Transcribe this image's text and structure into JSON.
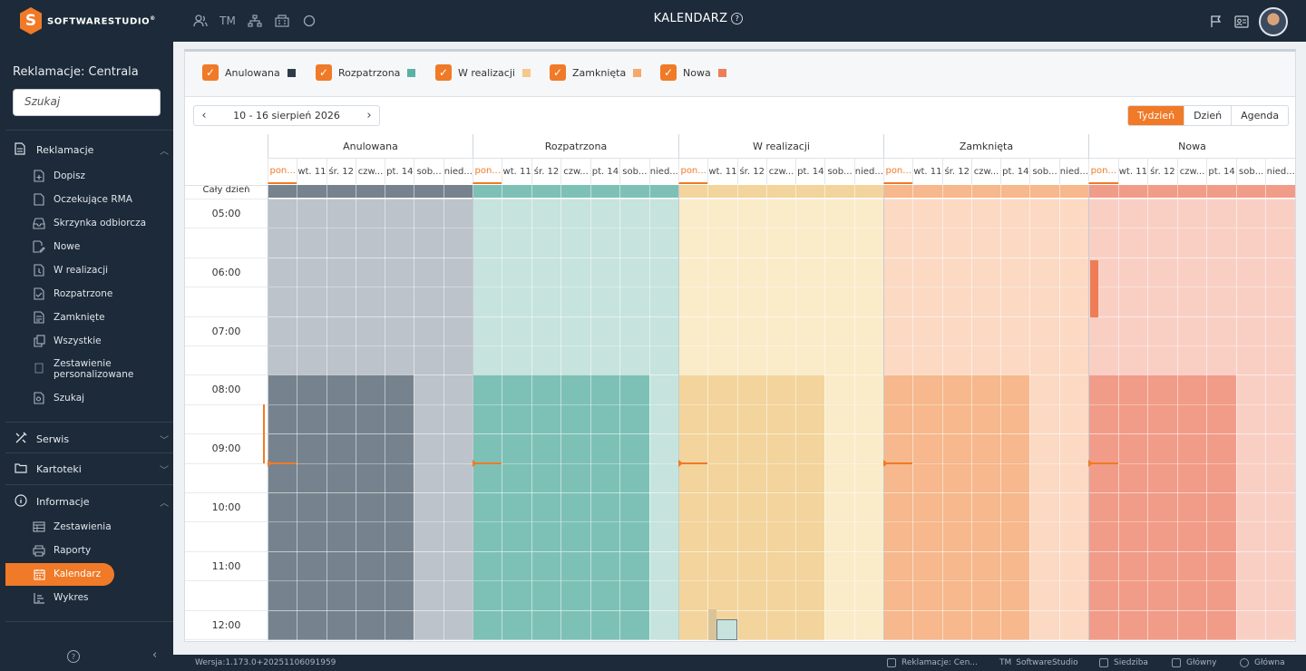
{
  "app": {
    "brand": "SOFTWARESTUDIO",
    "brand_mark": "S",
    "title": "KALENDARZ"
  },
  "top_icons": [
    "users-icon",
    "tm-icon",
    "org-chart-icon",
    "building-icon",
    "circle-icon"
  ],
  "top_icons_tm_label": "TM",
  "sidebar": {
    "context_title": "Reklamacje: Centrala",
    "search_placeholder": "Szukaj",
    "sections": [
      {
        "label": "Reklamacje",
        "expanded": true
      },
      {
        "label": "Serwis",
        "expanded": false
      },
      {
        "label": "Kartoteki",
        "expanded": false
      },
      {
        "label": "Informacje",
        "expanded": true
      }
    ],
    "reklamacje_items": [
      "Dopisz",
      "Oczekujące RMA",
      "Skrzynka odbiorcza",
      "Nowe",
      "W realizacji",
      "Rozpatrzone",
      "Zamknięte",
      "Wszystkie",
      "Zestawienie personalizowane",
      "Szukaj"
    ],
    "informacje_items": [
      "Zestawienia",
      "Raporty",
      "Kalendarz",
      "Wykres"
    ],
    "active_item": "Kalendarz"
  },
  "filters": [
    {
      "label": "Anulowana",
      "checked": true,
      "color": "#2e3b4a"
    },
    {
      "label": "Rozpatrzona",
      "checked": true,
      "color": "#5bb1a4"
    },
    {
      "label": "W realizacji",
      "checked": true,
      "color": "#f5c98a"
    },
    {
      "label": "Zamknięta",
      "checked": true,
      "color": "#f4a86c"
    },
    {
      "label": "Nowa",
      "checked": true,
      "color": "#ee7d57"
    }
  ],
  "toolbar": {
    "date_range": "10 - 16 sierpień 2026",
    "prev": "‹",
    "next": "›",
    "views": [
      "Tydzień",
      "Dzień",
      "Agenda"
    ],
    "active_view": "Tydzień"
  },
  "calendar": {
    "groups": [
      "Anulowana",
      "Rozpatrzona",
      "W realizacji",
      "Zamknięta",
      "Nowa"
    ],
    "days": [
      "pon...",
      "wt. 11",
      "śr. 12",
      "czw...",
      "pt. 14",
      "sob...",
      "nied..."
    ],
    "today_index": 0,
    "all_day_label": "Cały dzień",
    "hours": [
      "05:00",
      "06:00",
      "07:00",
      "08:00",
      "09:00",
      "10:00",
      "11:00",
      "12:00"
    ]
  },
  "statusbar": {
    "version": "Wersja:1.173.0+20251106091959",
    "items": [
      "Reklamacje: Cen...",
      "SoftwareStudio",
      "Siedziba",
      "Główny",
      "Główna"
    ]
  }
}
